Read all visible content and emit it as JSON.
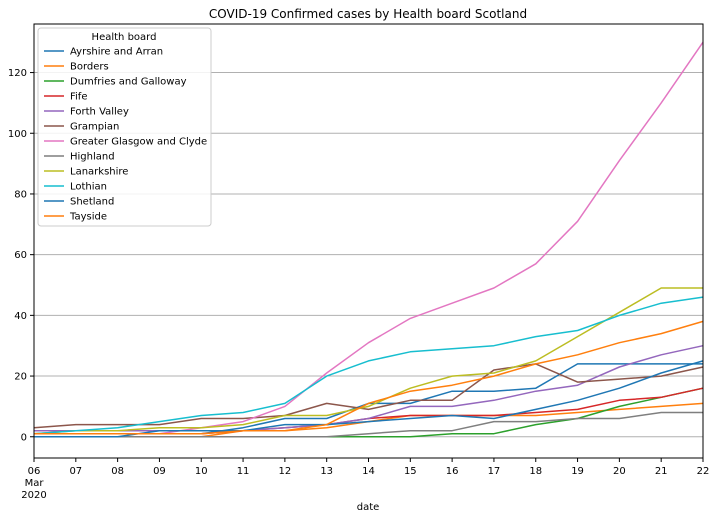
{
  "chart_data": {
    "type": "line",
    "title": "COVID-19 Confirmed cases by Health board Scotland",
    "xlabel": "date",
    "ylabel": "",
    "x": [
      6,
      7,
      8,
      9,
      10,
      11,
      12,
      13,
      14,
      15,
      16,
      17,
      18,
      19,
      20,
      21,
      22
    ],
    "x_tick_labels": [
      "06",
      "07",
      "08",
      "09",
      "10",
      "11",
      "12",
      "13",
      "14",
      "15",
      "16",
      "17",
      "18",
      "19",
      "20",
      "21",
      "22"
    ],
    "x_first_tick_extra": [
      "Mar",
      "2020"
    ],
    "xlim": [
      6,
      22
    ],
    "ylim": [
      -7,
      136
    ],
    "y_ticks": [
      0,
      20,
      40,
      60,
      80,
      100,
      120
    ],
    "grid": "y",
    "legend_title": "Health board",
    "legend_position": "top-left",
    "series": [
      {
        "name": "Ayrshire and Arran",
        "color": "#1f77b4",
        "values": [
          1,
          1,
          1,
          1,
          1,
          3,
          6,
          6,
          11,
          11,
          15,
          15,
          16,
          24,
          24,
          24,
          24
        ]
      },
      {
        "name": "Borders",
        "color": "#ff7f0e",
        "values": [
          0,
          0,
          0,
          0,
          0,
          2,
          2,
          3,
          5,
          7,
          7,
          7,
          7,
          8,
          9,
          10,
          11
        ]
      },
      {
        "name": "Dumfries and Galloway",
        "color": "#2ca02c",
        "values": [
          0,
          0,
          0,
          0,
          0,
          0,
          0,
          0,
          0,
          0,
          1,
          1,
          4,
          6,
          10,
          13,
          16
        ]
      },
      {
        "name": "Fife",
        "color": "#d62728",
        "values": [
          1,
          1,
          1,
          1,
          1,
          2,
          3,
          4,
          6,
          7,
          7,
          7,
          8,
          9,
          12,
          13,
          16
        ]
      },
      {
        "name": "Forth Valley",
        "color": "#9467bd",
        "values": [
          2,
          2,
          2,
          2,
          2,
          2,
          3,
          4,
          6,
          10,
          10,
          12,
          15,
          17,
          23,
          27,
          30
        ]
      },
      {
        "name": "Grampian",
        "color": "#8c564b",
        "values": [
          3,
          4,
          4,
          4,
          6,
          6,
          7,
          11,
          9,
          12,
          12,
          22,
          24,
          18,
          19,
          20,
          23
        ]
      },
      {
        "name": "Greater Glasgow and Clyde",
        "color": "#e377c2",
        "values": [
          1,
          1,
          1,
          1,
          3,
          5,
          10,
          21,
          31,
          39,
          44,
          49,
          57,
          71,
          91,
          110,
          130
        ]
      },
      {
        "name": "Highland",
        "color": "#7f7f7f",
        "values": [
          0,
          0,
          0,
          0,
          0,
          0,
          0,
          0,
          1,
          2,
          2,
          5,
          5,
          6,
          6,
          8,
          8
        ]
      },
      {
        "name": "Lanarkshire",
        "color": "#bcbd22",
        "values": [
          1,
          2,
          2,
          3,
          3,
          4,
          7,
          7,
          10,
          16,
          20,
          21,
          25,
          33,
          41,
          49,
          49
        ]
      },
      {
        "name": "Lothian",
        "color": "#17becf",
        "values": [
          1,
          2,
          3,
          5,
          7,
          8,
          11,
          20,
          25,
          28,
          29,
          30,
          33,
          35,
          40,
          44,
          46
        ]
      },
      {
        "name": "Shetland",
        "color": "#1f77b4",
        "values": [
          0,
          0,
          0,
          2,
          2,
          2,
          4,
          4,
          5,
          6,
          7,
          6,
          9,
          12,
          16,
          21,
          25
        ]
      },
      {
        "name": "Tayside",
        "color": "#ff7f0e",
        "values": [
          1,
          1,
          1,
          1,
          1,
          2,
          2,
          4,
          11,
          15,
          17,
          20,
          24,
          27,
          31,
          34,
          38
        ]
      }
    ]
  }
}
